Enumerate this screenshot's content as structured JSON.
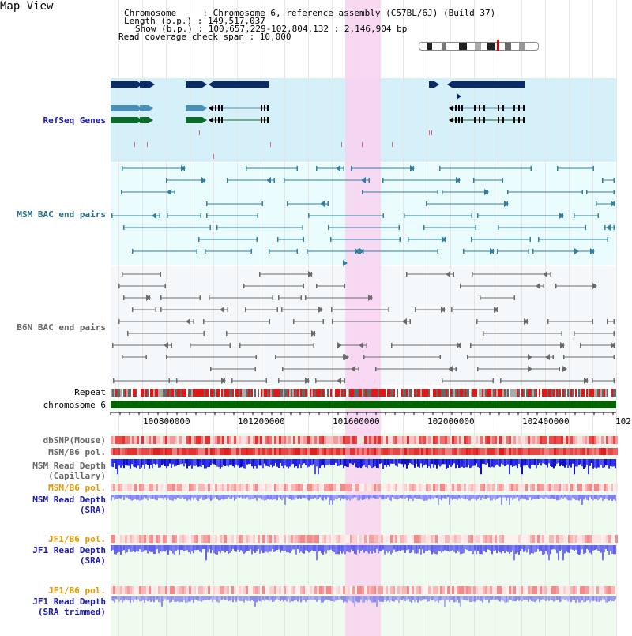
{
  "title": "Map View",
  "info": {
    "chromosome": "Chromosome     : Chromosome 6, reference assembly (C57BL/6J) (Build 37)",
    "length": "Length (b.p.) : 149,517,037",
    "show": "Show (b.p.) : 100,657,229-102,804,132 : 2,146,904 bp",
    "coverage": "Read coverage check span : 10,000"
  },
  "tracks": {
    "refseq": "RefSeq Genes",
    "msm_bac": "MSM BAC end pairs",
    "b6n_bac": "B6N BAC end pairs",
    "repeat": "Repeat",
    "chromosome": "chromosome 6",
    "dbsnp": "dbSNP(Mouse)",
    "msm_pol1": "MSM/B6 pol.",
    "msm_depth_cap_1": "MSM Read Depth",
    "msm_depth_cap_2": "(Capillary)",
    "msm_pol2": "MSM/B6 pol.",
    "msm_depth_sra_1": "MSM Read Depth",
    "msm_depth_sra_2": "(SRA)",
    "jf1_pol1": "JF1/B6 pol.",
    "jf1_depth_1": "JF1 Read Depth",
    "jf1_depth_2": "(SRA)",
    "jf1_pol2": "JF1/B6 pol.",
    "jf1_trim_1": "JF1 Read Depth",
    "jf1_trim_2": "(SRA trimmed)"
  },
  "axis": {
    "ticks": [
      "100800000",
      "101200000",
      "101600000",
      "102000000",
      "102400000",
      "102"
    ]
  },
  "colors": {
    "refseq_bg": "#d6f0fa",
    "msm_bg": "#eafcfd",
    "b6n_bg": "#f4f7fa",
    "highlight": "#f8d2f0",
    "chrom_green": "#006400",
    "gene_dark": "#0b2a6b",
    "gene_teal": "#4a8fb5",
    "gene_green": "#0b6b2a"
  }
}
